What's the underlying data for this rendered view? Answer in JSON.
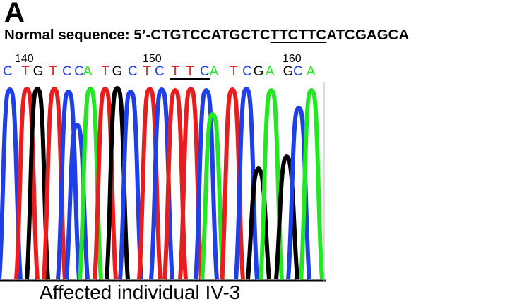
{
  "panel": {
    "letter": "A",
    "normal_sequence": {
      "label": "Normal sequence: 5’-",
      "before": "CTGTCCATGCTC",
      "underlined": "TTCTTC",
      "after": "ATCGAGCA"
    },
    "caption": "Affected individual IV-3"
  },
  "colors": {
    "A": "#22e822",
    "C": "#1f3fe8",
    "G": "#000000",
    "T": "#e81e1e"
  },
  "chromatogram": {
    "position_labels": [
      "140",
      "150",
      "160"
    ],
    "base_calls": [
      "C",
      "T",
      "G",
      "T",
      "C",
      "C",
      "A",
      "T",
      "G",
      "C",
      "T",
      "C",
      "T",
      "T",
      "C",
      "A",
      "T",
      "C",
      "G",
      "A",
      "G",
      "C",
      "A"
    ],
    "underlined_calls": [
      12,
      13,
      14
    ]
  }
}
